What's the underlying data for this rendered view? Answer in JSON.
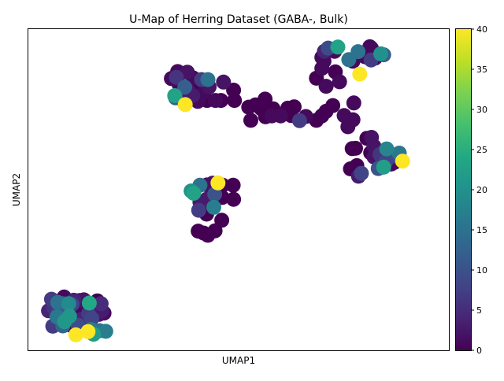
{
  "chart_data": {
    "type": "scatter",
    "title": "U-Map of Herring Dataset (GABA-, Bulk)",
    "xlabel": "UMAP1",
    "ylabel": "UMAP2",
    "x_ticks_visible": false,
    "y_ticks_visible": false,
    "xlim": [
      0,
      100
    ],
    "ylim": [
      0,
      100
    ],
    "colormap": "viridis",
    "colorbar": {
      "min": 0,
      "max": 40,
      "ticks": [
        "0",
        "5",
        "10",
        "15",
        "20",
        "25",
        "30",
        "35",
        "40"
      ],
      "placement": "right"
    },
    "points": [
      [
        34.0,
        84.6,
        1
      ],
      [
        35.5,
        86.8,
        1
      ],
      [
        37.8,
        86.6,
        2
      ],
      [
        35.2,
        85.0,
        6
      ],
      [
        39.2,
        84.8,
        1
      ],
      [
        41.2,
        84.3,
        7
      ],
      [
        42.7,
        84.3,
        15
      ],
      [
        46.4,
        83.5,
        2
      ],
      [
        43.0,
        82.0,
        2
      ],
      [
        40.1,
        81.8,
        0
      ],
      [
        35.8,
        82.9,
        1
      ],
      [
        37.2,
        81.9,
        12
      ],
      [
        38.0,
        80.8,
        3
      ],
      [
        41.5,
        80.1,
        1
      ],
      [
        39.1,
        79.3,
        3
      ],
      [
        36.2,
        78.4,
        1
      ],
      [
        35.0,
        78.6,
        12
      ],
      [
        34.8,
        79.3,
        23
      ],
      [
        37.3,
        76.5,
        40
      ],
      [
        40.3,
        77.5,
        1
      ],
      [
        42.5,
        77.8,
        0
      ],
      [
        44.5,
        77.8,
        1
      ],
      [
        45.8,
        77.8,
        0
      ],
      [
        49.0,
        77.8,
        0
      ],
      [
        48.8,
        81.0,
        0
      ],
      [
        52.4,
        75.7,
        0
      ],
      [
        54.0,
        76.4,
        0
      ],
      [
        55.4,
        75.2,
        0
      ],
      [
        56.3,
        78.2,
        0
      ],
      [
        58.2,
        75.2,
        0
      ],
      [
        57.9,
        73.0,
        1
      ],
      [
        60.0,
        73.0,
        1
      ],
      [
        56.4,
        72.7,
        0
      ],
      [
        52.9,
        71.6,
        0
      ],
      [
        61.7,
        75.4,
        0
      ],
      [
        62.5,
        73.1,
        0
      ],
      [
        63.2,
        75.8,
        0
      ],
      [
        64.5,
        71.5,
        7
      ],
      [
        66.0,
        72.8,
        1
      ],
      [
        68.5,
        71.6,
        0
      ],
      [
        69.8,
        73.0,
        0
      ],
      [
        70.8,
        74.4,
        0
      ],
      [
        72.4,
        76.2,
        0
      ],
      [
        68.5,
        84.7,
        0
      ],
      [
        69.8,
        87.8,
        1
      ],
      [
        70.3,
        90.0,
        1
      ],
      [
        69.8,
        91.2,
        1
      ],
      [
        70.4,
        93.1,
        4
      ],
      [
        71.3,
        94.1,
        9
      ],
      [
        72.8,
        93.1,
        1
      ],
      [
        73.6,
        94.4,
        23
      ],
      [
        73.0,
        86.7,
        0
      ],
      [
        74.0,
        83.6,
        1
      ],
      [
        70.8,
        82.2,
        1
      ],
      [
        76.2,
        90.5,
        15
      ],
      [
        77.2,
        90.0,
        1
      ],
      [
        78.4,
        93.0,
        15
      ],
      [
        78.8,
        86.0,
        40
      ],
      [
        80.1,
        91.4,
        1
      ],
      [
        81.2,
        94.5,
        1
      ],
      [
        81.6,
        94.0,
        1
      ],
      [
        81.5,
        90.4,
        7
      ],
      [
        82.5,
        91.0,
        1
      ],
      [
        83.8,
        92.3,
        20
      ],
      [
        84.5,
        92.0,
        12
      ],
      [
        77.4,
        77.0,
        1
      ],
      [
        76.0,
        69.6,
        1
      ],
      [
        75.1,
        73.1,
        1
      ],
      [
        77.2,
        71.8,
        1
      ],
      [
        77.0,
        62.8,
        0
      ],
      [
        77.8,
        62.9,
        0
      ],
      [
        78.1,
        57.5,
        0
      ],
      [
        76.6,
        56.5,
        0
      ],
      [
        79.2,
        55.1,
        8
      ],
      [
        78.5,
        54.2,
        3
      ],
      [
        80.5,
        66.0,
        0
      ],
      [
        81.6,
        66.3,
        2
      ],
      [
        81.4,
        61.5,
        0
      ],
      [
        82.2,
        63.5,
        2
      ],
      [
        83.6,
        61.0,
        6
      ],
      [
        84.1,
        59.8,
        4
      ],
      [
        85.0,
        58.8,
        8
      ],
      [
        83.2,
        56.6,
        10
      ],
      [
        85.2,
        62.7,
        18
      ],
      [
        86.5,
        60.8,
        6
      ],
      [
        87.5,
        60.9,
        9
      ],
      [
        88.2,
        61.4,
        16
      ],
      [
        89.0,
        58.9,
        40
      ],
      [
        87.0,
        58.5,
        0
      ],
      [
        86.3,
        58.0,
        1
      ],
      [
        82.2,
        60.2,
        2
      ],
      [
        84.5,
        57.0,
        22
      ],
      [
        87.2,
        60.5,
        7
      ],
      [
        38.7,
        49.6,
        20
      ],
      [
        40.8,
        51.4,
        15
      ],
      [
        42.5,
        51.5,
        2
      ],
      [
        43.8,
        52.0,
        2
      ],
      [
        45.1,
        52.1,
        40
      ],
      [
        46.2,
        51.4,
        0
      ],
      [
        48.7,
        51.4,
        0
      ],
      [
        39.3,
        48.9,
        23
      ],
      [
        42.4,
        47.0,
        3
      ],
      [
        40.8,
        46.1,
        3
      ],
      [
        43.8,
        47.9,
        1
      ],
      [
        44.3,
        48.6,
        10
      ],
      [
        46.1,
        47.6,
        0
      ],
      [
        48.8,
        47.0,
        0
      ],
      [
        40.5,
        43.6,
        7
      ],
      [
        44.1,
        44.5,
        17
      ],
      [
        42.4,
        42.4,
        0
      ],
      [
        46.0,
        40.5,
        0
      ],
      [
        40.4,
        37.1,
        0
      ],
      [
        44.4,
        37.2,
        0
      ],
      [
        42.7,
        35.8,
        0
      ],
      [
        41.7,
        36.5,
        0
      ],
      [
        5.5,
        15.9,
        7
      ],
      [
        8.5,
        16.6,
        1
      ],
      [
        10.8,
        15.6,
        4
      ],
      [
        12.2,
        15.5,
        2
      ],
      [
        13.2,
        15.7,
        2
      ],
      [
        16.4,
        15.4,
        0
      ],
      [
        17.3,
        14.5,
        5
      ],
      [
        14.5,
        14.7,
        24
      ],
      [
        7.0,
        14.9,
        15
      ],
      [
        8.2,
        14.5,
        12
      ],
      [
        9.6,
        14.5,
        19
      ],
      [
        10.4,
        14.3,
        8
      ],
      [
        6.0,
        13.4,
        6
      ],
      [
        4.8,
        12.3,
        4
      ],
      [
        7.2,
        12.0,
        8
      ],
      [
        9.4,
        11.4,
        12
      ],
      [
        12.4,
        11.4,
        1
      ],
      [
        14.3,
        11.4,
        7
      ],
      [
        15.0,
        11.7,
        3
      ],
      [
        17.5,
        12.3,
        3
      ],
      [
        18.0,
        11.6,
        1
      ],
      [
        6.8,
        10.4,
        16
      ],
      [
        9.8,
        10.6,
        21
      ],
      [
        12.5,
        9.6,
        4
      ],
      [
        15.1,
        9.9,
        8
      ],
      [
        16.8,
        11.2,
        2
      ],
      [
        5.8,
        7.5,
        7
      ],
      [
        8.2,
        7.6,
        13
      ],
      [
        10.1,
        7.8,
        0
      ],
      [
        11.8,
        7.8,
        9
      ],
      [
        13.4,
        7.5,
        5
      ],
      [
        15.0,
        6.5,
        16
      ],
      [
        17.0,
        6.1,
        15
      ],
      [
        18.4,
        5.9,
        17
      ],
      [
        14.2,
        5.8,
        40
      ],
      [
        15.5,
        5.0,
        22
      ],
      [
        11.3,
        4.8,
        40
      ],
      [
        8.6,
        8.9,
        21
      ]
    ]
  }
}
